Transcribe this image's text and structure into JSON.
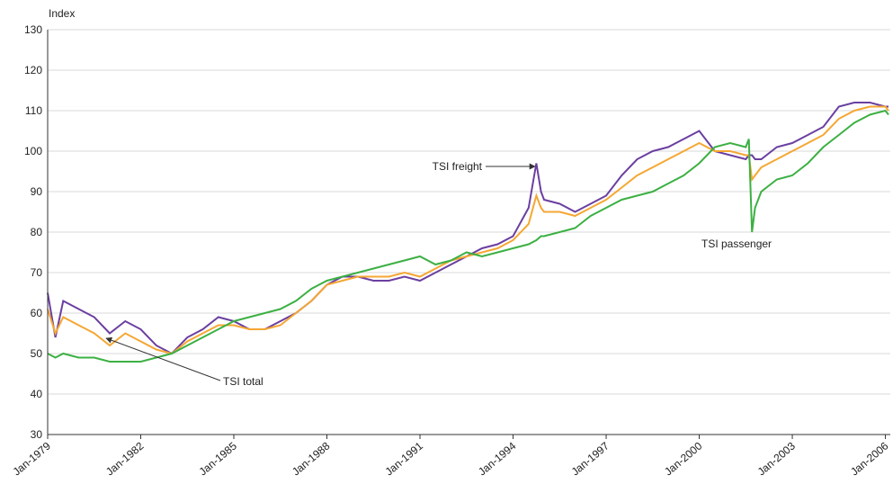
{
  "chart_data": {
    "type": "line",
    "y_label": "Index",
    "x": [
      1979,
      1979.25,
      1979.5,
      1980,
      1980.5,
      1981,
      1981.5,
      1982,
      1982.5,
      1983,
      1983.5,
      1984,
      1984.5,
      1985,
      1985.5,
      1986,
      1986.5,
      1987,
      1987.5,
      1988,
      1988.5,
      1989,
      1989.5,
      1990,
      1990.5,
      1991,
      1991.5,
      1992,
      1992.5,
      1993,
      1993.5,
      1994,
      1994.5,
      1994.75,
      1994.9,
      1995,
      1995.5,
      1996,
      1996.5,
      1997,
      1997.5,
      1998,
      1998.5,
      1999,
      1999.5,
      2000,
      2000.5,
      2001,
      2001.5,
      2001.6,
      2001.7,
      2001.8,
      2002,
      2002.5,
      2003,
      2003.5,
      2004,
      2004.5,
      2005,
      2005.5,
      2006,
      2006.1
    ],
    "series": [
      {
        "name": "TSI freight",
        "color": "#6b3fa0",
        "values": [
          65,
          54,
          63,
          61,
          59,
          55,
          58,
          56,
          52,
          50,
          54,
          56,
          59,
          58,
          56,
          56,
          58,
          60,
          63,
          67,
          69,
          69,
          68,
          68,
          69,
          68,
          70,
          72,
          74,
          76,
          77,
          79,
          86,
          97,
          90,
          88,
          87,
          85,
          87,
          89,
          94,
          98,
          100,
          101,
          103,
          105,
          100,
          99,
          98,
          99,
          99,
          98,
          98,
          101,
          102,
          104,
          106,
          111,
          112,
          112,
          111,
          111
        ]
      },
      {
        "name": "TSI total",
        "color": "#f5a733",
        "values": [
          61,
          55,
          59,
          57,
          55,
          52,
          55,
          53,
          51,
          50,
          53,
          55,
          57,
          57,
          56,
          56,
          57,
          60,
          63,
          67,
          68,
          69,
          69,
          69,
          70,
          69,
          71,
          73,
          74,
          75,
          76,
          78,
          82,
          89,
          86,
          85,
          85,
          84,
          86,
          88,
          91,
          94,
          96,
          98,
          100,
          102,
          100,
          100,
          99,
          99,
          93,
          94,
          96,
          98,
          100,
          102,
          104,
          108,
          110,
          111,
          111,
          110
        ]
      },
      {
        "name": "TSI passenger",
        "color": "#3cb043",
        "values": [
          50,
          49,
          50,
          49,
          49,
          48,
          48,
          48,
          49,
          50,
          52,
          54,
          56,
          58,
          59,
          60,
          61,
          63,
          66,
          68,
          69,
          70,
          71,
          72,
          73,
          74,
          72,
          73,
          75,
          74,
          75,
          76,
          77,
          78,
          79,
          79,
          80,
          81,
          84,
          86,
          88,
          89,
          90,
          92,
          94,
          97,
          101,
          102,
          101,
          103,
          80,
          86,
          90,
          93,
          94,
          97,
          101,
          104,
          107,
          109,
          110,
          109
        ]
      }
    ],
    "xlim": [
      1979,
      2006.1
    ],
    "xticks": [
      {
        "value": 1979,
        "label": "Jan-1979"
      },
      {
        "value": 1982,
        "label": "Jan-1982"
      },
      {
        "value": 1985,
        "label": "Jan-1985"
      },
      {
        "value": 1988,
        "label": "Jan-1988"
      },
      {
        "value": 1991,
        "label": "Jan-1991"
      },
      {
        "value": 1994,
        "label": "Jan-1994"
      },
      {
        "value": 1997,
        "label": "Jan-1997"
      },
      {
        "value": 2000,
        "label": "Jan-2000"
      },
      {
        "value": 2003,
        "label": "Jan-2003"
      },
      {
        "value": 2006,
        "label": "Jan-2006"
      }
    ],
    "ylim": [
      30,
      130
    ],
    "yticks": [
      30,
      40,
      50,
      60,
      70,
      80,
      90,
      100,
      110,
      120,
      130
    ],
    "grid": true
  }
}
